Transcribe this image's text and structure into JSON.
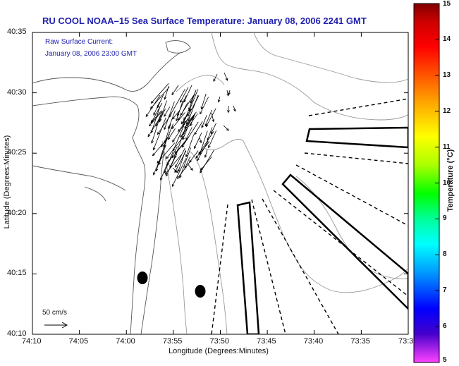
{
  "title": "RU COOL  NOAA–15  Sea Surface Temperature:  January 08, 2006 2241 GMT",
  "annotation": {
    "line1": "Raw Surface Current:",
    "line2": "January 08, 2006 23:00 GMT"
  },
  "axes": {
    "x_label": "Longitude (Degrees:Minutes)",
    "y_label": "Latitude (Degrees:Minutes)",
    "x_ticks": [
      "74:10",
      "74:05",
      "74:00",
      "73:55",
      "73:50",
      "73:45",
      "73:40",
      "73:35",
      "73:3"
    ],
    "y_ticks": [
      "40:35",
      "40:30",
      "40:25",
      "40:20",
      "40:15",
      "40:10"
    ]
  },
  "scale_bar": {
    "label": "50 cm/s"
  },
  "colorbar": {
    "label": "Temperature (°C)",
    "ticks": [
      "15",
      "14",
      "13",
      "12",
      "11",
      "10",
      "9",
      "8",
      "7",
      "6",
      "5"
    ],
    "colors": [
      "#ff44ff",
      "#4400cc",
      "#0000ff",
      "#0099ff",
      "#00ffff",
      "#00ff99",
      "#00ff00",
      "#aaff00",
      "#ffff00",
      "#ffaa00",
      "#ff5500",
      "#ff0000",
      "#cc0000",
      "#800000"
    ]
  },
  "vector_color": "#000000",
  "markers": [
    {
      "name": "station-marker-west"
    },
    {
      "name": "station-marker-east"
    }
  ]
}
